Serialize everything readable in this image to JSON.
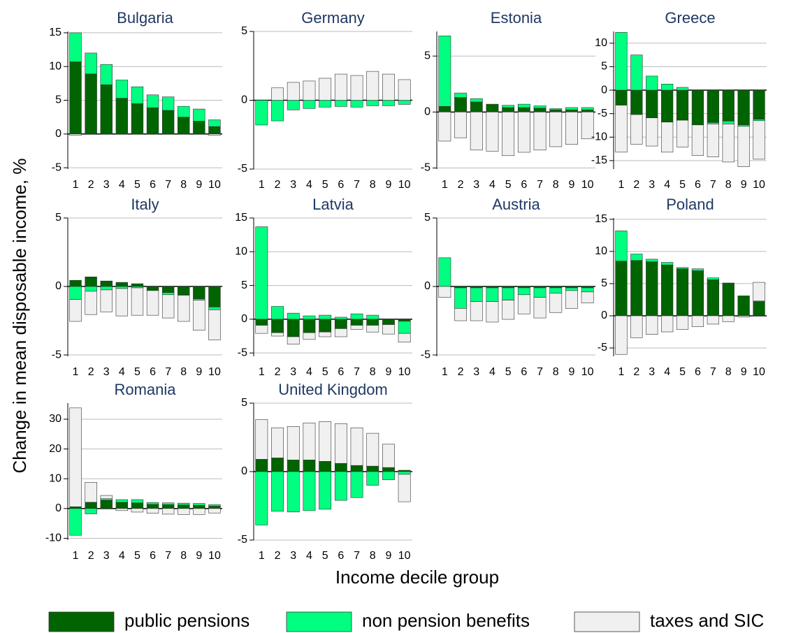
{
  "ylabel": "Change in mean disposable income, %",
  "xlabel": "Income decile group",
  "legend": [
    {
      "name": "public pensions",
      "color": "#006400"
    },
    {
      "name": "non pension benefits",
      "color": "#00ff80"
    },
    {
      "name": "taxes and SIC",
      "color": "#f0f0f0"
    }
  ],
  "chart_data": [
    {
      "type": "bar",
      "stacked": true,
      "title": "Bulgaria",
      "categories": [
        "1",
        "2",
        "3",
        "4",
        "5",
        "6",
        "7",
        "8",
        "9",
        "10"
      ],
      "ylim": [
        -5.2,
        15.2
      ],
      "yticks": [
        -5,
        0,
        5,
        10,
        15
      ],
      "series": [
        {
          "values": [
            10.7,
            8.9,
            7.3,
            5.3,
            4.5,
            3.9,
            3.5,
            2.5,
            1.9,
            1.1
          ]
        },
        {
          "values": [
            4.3,
            3.1,
            3.0,
            2.7,
            2.5,
            1.9,
            2.0,
            1.6,
            1.8,
            1.0
          ]
        },
        {
          "values": [
            -0.2,
            -0.1,
            0,
            0,
            0,
            0,
            0,
            0,
            0,
            -0.2
          ]
        }
      ]
    },
    {
      "type": "bar",
      "stacked": true,
      "title": "Germany",
      "categories": [
        "1",
        "2",
        "3",
        "4",
        "5",
        "6",
        "7",
        "8",
        "9",
        "10"
      ],
      "ylim": [
        -5,
        5
      ],
      "yticks": [
        -5,
        0,
        5
      ],
      "series": [
        {
          "values": [
            0,
            0,
            0,
            0,
            0,
            0,
            0,
            0,
            0,
            0
          ]
        },
        {
          "values": [
            -1.8,
            -1.5,
            -0.7,
            -0.6,
            -0.5,
            -0.45,
            -0.5,
            -0.4,
            -0.4,
            -0.3
          ]
        },
        {
          "values": [
            0,
            0.9,
            1.3,
            1.4,
            1.6,
            1.9,
            1.8,
            2.1,
            1.9,
            1.5
          ]
        }
      ]
    },
    {
      "type": "bar",
      "stacked": true,
      "title": "Estonia",
      "categories": [
        "1",
        "2",
        "3",
        "4",
        "5",
        "6",
        "7",
        "8",
        "9",
        "10"
      ],
      "ylim": [
        -5.1,
        7.2
      ],
      "yticks": [
        -5,
        0,
        5
      ],
      "series": [
        {
          "values": [
            0.5,
            1.3,
            0.9,
            0.7,
            0.4,
            0.4,
            0.35,
            0.2,
            0.2,
            0.2
          ]
        },
        {
          "values": [
            6.3,
            0.4,
            0.3,
            0,
            0.2,
            0.3,
            0.2,
            0.1,
            0.2,
            0.2
          ]
        },
        {
          "values": [
            -2.6,
            -2.3,
            -3.4,
            -3.5,
            -3.9,
            -3.6,
            -3.4,
            -3.1,
            -2.9,
            -2.4
          ]
        }
      ]
    },
    {
      "type": "bar",
      "stacked": true,
      "title": "Greece",
      "categories": [
        "1",
        "2",
        "3",
        "4",
        "5",
        "6",
        "7",
        "8",
        "9",
        "10"
      ],
      "ylim": [
        -16.8,
        12.5
      ],
      "yticks": [
        -15,
        -10,
        -5,
        0,
        5,
        10
      ],
      "series": [
        {
          "values": [
            -3.2,
            -5.2,
            -5.9,
            -6.8,
            -6.4,
            -7.4,
            -6.9,
            -6.6,
            -7.4,
            -6.2
          ]
        },
        {
          "values": [
            12.3,
            7.5,
            3.0,
            1.3,
            0.6,
            0,
            -0.3,
            -0.6,
            -0.3,
            -0.3
          ]
        },
        {
          "values": [
            -10,
            -6.3,
            -6,
            -6.4,
            -5.7,
            -6.5,
            -7,
            -8.1,
            -8.6,
            -8.2
          ]
        }
      ]
    },
    {
      "type": "bar",
      "stacked": true,
      "title": "Italy",
      "categories": [
        "1",
        "2",
        "3",
        "4",
        "5",
        "6",
        "7",
        "8",
        "9",
        "10"
      ],
      "ylim": [
        -5.1,
        5
      ],
      "yticks": [
        -5,
        0,
        5
      ],
      "series": [
        {
          "values": [
            0.45,
            0.7,
            0.4,
            0.3,
            0.2,
            -0.3,
            -0.45,
            -0.6,
            -0.9,
            -1.5
          ]
        },
        {
          "values": [
            -0.95,
            -0.35,
            -0.25,
            -0.15,
            -0.1,
            0,
            -0.15,
            -0.05,
            -0.1,
            -0.2
          ]
        },
        {
          "values": [
            -1.6,
            -1.7,
            -1.6,
            -2.0,
            -2.0,
            -1.8,
            -1.7,
            -1.9,
            -2.2,
            -2.2
          ]
        }
      ]
    },
    {
      "type": "bar",
      "stacked": true,
      "title": "Latvia",
      "categories": [
        "1",
        "2",
        "3",
        "4",
        "5",
        "6",
        "7",
        "8",
        "9",
        "10"
      ],
      "ylim": [
        -5.5,
        15
      ],
      "yticks": [
        -5,
        0,
        5,
        10,
        15
      ],
      "series": [
        {
          "values": [
            -0.9,
            -2.0,
            -2.6,
            -2.0,
            -1.9,
            -1.4,
            -0.9,
            -0.9,
            -0.8,
            -0.3
          ]
        },
        {
          "values": [
            13.7,
            1.9,
            0.9,
            0.5,
            0.6,
            0.3,
            0.8,
            0.6,
            0,
            -1.8
          ]
        },
        {
          "values": [
            -1.2,
            -0.5,
            -1.1,
            -1.0,
            -0.7,
            -1.2,
            -0.6,
            -1.0,
            -1.4,
            -1.3
          ]
        }
      ]
    },
    {
      "type": "bar",
      "stacked": true,
      "title": "Austria",
      "categories": [
        "1",
        "2",
        "3",
        "4",
        "5",
        "6",
        "7",
        "8",
        "9",
        "10"
      ],
      "ylim": [
        -5.1,
        5
      ],
      "yticks": [
        -5,
        0,
        5
      ],
      "series": [
        {
          "values": [
            0,
            -0.1,
            -0.1,
            -0.1,
            -0.1,
            -0.1,
            -0.1,
            -0.1,
            -0.1,
            -0.1
          ]
        },
        {
          "values": [
            2.1,
            -1.5,
            -1.0,
            -1.0,
            -0.9,
            -0.5,
            -0.7,
            -0.4,
            -0.2,
            -0.3
          ]
        },
        {
          "values": [
            -0.8,
            -0.9,
            -1.4,
            -1.5,
            -1.4,
            -1.4,
            -1.5,
            -1.4,
            -1.3,
            -0.8
          ]
        }
      ]
    },
    {
      "type": "bar",
      "stacked": true,
      "title": "Poland",
      "categories": [
        "1",
        "2",
        "3",
        "4",
        "5",
        "6",
        "7",
        "8",
        "9",
        "10"
      ],
      "ylim": [
        -6.3,
        15.2
      ],
      "yticks": [
        -5,
        0,
        5,
        10,
        15
      ],
      "series": [
        {
          "values": [
            8.5,
            8.6,
            8.4,
            7.9,
            7.3,
            7.0,
            5.6,
            5.1,
            3.1,
            2.2
          ]
        },
        {
          "values": [
            4.7,
            1.0,
            0.4,
            0.4,
            0.2,
            0.3,
            0.3,
            0,
            0,
            0.1
          ]
        },
        {
          "values": [
            -6.0,
            -3.4,
            -2.9,
            -2.5,
            -2.1,
            -1.7,
            -1.3,
            -0.9,
            -0.2,
            2.9
          ]
        }
      ]
    },
    {
      "type": "bar",
      "stacked": true,
      "title": "Romania",
      "categories": [
        "1",
        "2",
        "3",
        "4",
        "5",
        "6",
        "7",
        "8",
        "9",
        "10"
      ],
      "ylim": [
        -10.6,
        35.4
      ],
      "yticks": [
        -10,
        0,
        10,
        20,
        30
      ],
      "series": [
        {
          "values": [
            0.6,
            2.1,
            2.8,
            2.1,
            1.9,
            1.4,
            1.3,
            1.2,
            1.1,
            0.8
          ]
        },
        {
          "values": [
            -9.0,
            -1.8,
            0.5,
            0.9,
            1.1,
            0.6,
            0.6,
            0.6,
            0.6,
            0.5
          ]
        },
        {
          "values": [
            33.2,
            6.7,
            1.1,
            -0.7,
            -1.2,
            -1.6,
            -1.9,
            -2.0,
            -2.0,
            -1.5
          ]
        }
      ]
    },
    {
      "type": "bar",
      "stacked": true,
      "title": "United Kingdom",
      "categories": [
        "1",
        "2",
        "3",
        "4",
        "5",
        "6",
        "7",
        "8",
        "9",
        "10"
      ],
      "ylim": [
        -5,
        5
      ],
      "yticks": [
        -5,
        0,
        5
      ],
      "series": [
        {
          "values": [
            0.9,
            1.0,
            0.85,
            0.85,
            0.75,
            0.6,
            0.45,
            0.4,
            0.3,
            0.1
          ]
        },
        {
          "values": [
            -3.9,
            -2.9,
            -2.95,
            -2.85,
            -2.75,
            -2.1,
            -1.9,
            -1.0,
            -0.6,
            -0.2
          ]
        },
        {
          "values": [
            2.9,
            2.2,
            2.45,
            2.7,
            2.9,
            2.9,
            2.75,
            2.4,
            1.7,
            -2.0
          ]
        }
      ]
    }
  ]
}
